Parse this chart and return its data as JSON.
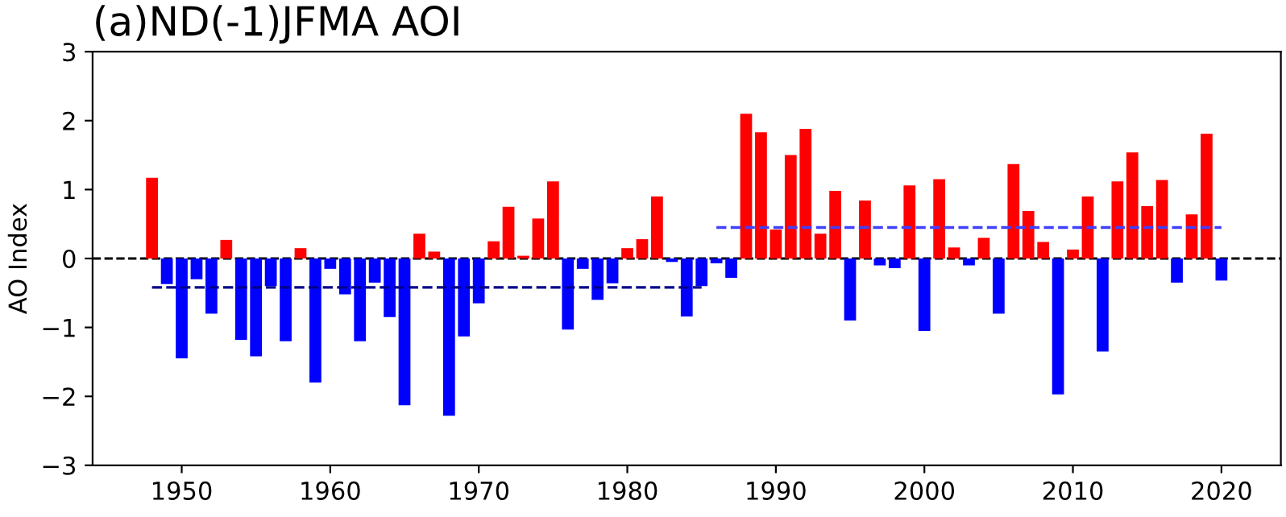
{
  "chart_data": {
    "type": "bar",
    "title": "(a)ND(-1)JFMA AOI",
    "ylabel": "AO Index",
    "x": [
      1948,
      1949,
      1950,
      1951,
      1952,
      1953,
      1954,
      1955,
      1956,
      1957,
      1958,
      1959,
      1960,
      1961,
      1962,
      1963,
      1964,
      1965,
      1966,
      1967,
      1968,
      1969,
      1970,
      1971,
      1972,
      1973,
      1974,
      1975,
      1976,
      1977,
      1978,
      1979,
      1980,
      1981,
      1982,
      1983,
      1984,
      1985,
      1986,
      1987,
      1988,
      1989,
      1990,
      1991,
      1992,
      1993,
      1994,
      1995,
      1996,
      1997,
      1998,
      1999,
      2000,
      2001,
      2002,
      2003,
      2004,
      2005,
      2006,
      2007,
      2008,
      2009,
      2010,
      2011,
      2012,
      2013,
      2014,
      2015,
      2016,
      2017,
      2018,
      2019,
      2020
    ],
    "series": [
      {
        "values": [
          1.17,
          -0.37,
          -1.45,
          -0.3,
          -0.8,
          0.27,
          -1.18,
          -1.42,
          -0.4,
          -1.2,
          0.15,
          -1.8,
          -0.15,
          -0.52,
          -1.2,
          -0.35,
          -0.85,
          -2.13,
          0.36,
          0.1,
          -2.28,
          -1.13,
          -0.65,
          0.25,
          0.75,
          0.04,
          0.58,
          1.12,
          -1.03,
          -0.15,
          -0.6,
          -0.36,
          0.15,
          0.28,
          0.9,
          -0.05,
          -0.84,
          -0.4,
          -0.07,
          -0.28,
          2.1,
          1.83,
          0.42,
          1.5,
          1.88,
          0.36,
          0.98,
          -0.9,
          0.84,
          -0.1,
          -0.14,
          1.06,
          -1.05,
          1.15,
          0.16,
          -0.1,
          0.3,
          -0.8,
          1.37,
          0.69,
          0.24,
          -1.97,
          0.13,
          0.9,
          -1.35,
          1.12,
          1.54,
          0.76,
          1.14,
          -0.35,
          0.64,
          1.81,
          -0.32
        ],
        "colors": [
          "#ff0000",
          "#0000ff",
          "#0000ff",
          "#0000ff",
          "#0000ff",
          "#ff0000",
          "#0000ff",
          "#0000ff",
          "#0000ff",
          "#0000ff",
          "#ff0000",
          "#0000ff",
          "#0000ff",
          "#0000ff",
          "#0000ff",
          "#0000ff",
          "#0000ff",
          "#0000ff",
          "#ff0000",
          "#ff0000",
          "#0000ff",
          "#0000ff",
          "#0000ff",
          "#ff0000",
          "#ff0000",
          "#ff0000",
          "#ff0000",
          "#ff0000",
          "#0000ff",
          "#0000ff",
          "#0000ff",
          "#0000ff",
          "#ff0000",
          "#ff0000",
          "#ff0000",
          "#0000ff",
          "#0000ff",
          "#0000ff",
          "#0000ff",
          "#0000ff",
          "#ff0000",
          "#ff0000",
          "#ff0000",
          "#ff0000",
          "#ff0000",
          "#ff0000",
          "#ff0000",
          "#0000ff",
          "#ff0000",
          "#0000ff",
          "#0000ff",
          "#ff0000",
          "#0000ff",
          "#ff0000",
          "#ff0000",
          "#0000ff",
          "#ff0000",
          "#0000ff",
          "#ff0000",
          "#ff0000",
          "#ff0000",
          "#0000ff",
          "#ff0000",
          "#ff0000",
          "#0000ff",
          "#ff0000",
          "#ff0000",
          "#ff0000",
          "#ff0000",
          "#0000ff",
          "#ff0000",
          "#ff0000",
          "#0000ff"
        ]
      },
      {
        "type": "line",
        "x": [
          1948,
          1985
        ],
        "values": [
          -0.42,
          -0.42
        ],
        "color": "#00008b",
        "line_style": "dashed"
      },
      {
        "type": "line",
        "x": [
          1986,
          2020
        ],
        "values": [
          0.45,
          0.45
        ],
        "color": "#4040ff",
        "line_style": "dashed"
      }
    ],
    "ref_lines": [
      {
        "axis": "y",
        "value": 0,
        "color": "#000000",
        "line_style": "dashed"
      }
    ],
    "xlim": [
      1944,
      2024
    ],
    "xticks": [
      1950,
      1960,
      1970,
      1980,
      1990,
      2000,
      2010,
      2020
    ],
    "ylim": [
      -3,
      3
    ],
    "yticks": [
      -3,
      -2,
      -1,
      0,
      1,
      2,
      3
    ],
    "grid": false,
    "legend": false
  }
}
